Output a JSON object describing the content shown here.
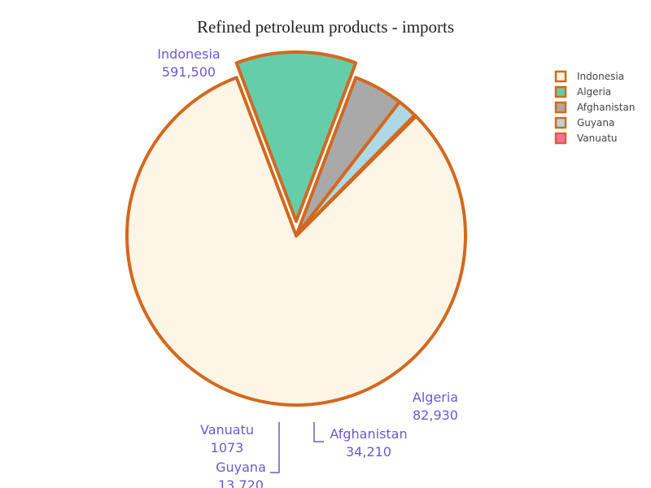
{
  "chart_data": {
    "type": "pie",
    "title": "Refined petroleum products - imports",
    "categories": [
      "Indonesia",
      "Algeria",
      "Afghanistan",
      "Guyana",
      "Vanuatu"
    ],
    "values": [
      591500,
      82930,
      34210,
      13720,
      1073
    ],
    "value_labels": [
      "591,500",
      "82,930",
      "34,210",
      "13,720",
      "1073"
    ],
    "pulled": [
      "Algeria"
    ],
    "legend_position": "top-right",
    "colors": {
      "slices": [
        "#fdf5e6",
        "#66cdaa",
        "#a9a9a9",
        "#add8e6",
        "#ff69b4"
      ],
      "outline": "#d2691e",
      "label_text": "#6a5acd"
    }
  }
}
